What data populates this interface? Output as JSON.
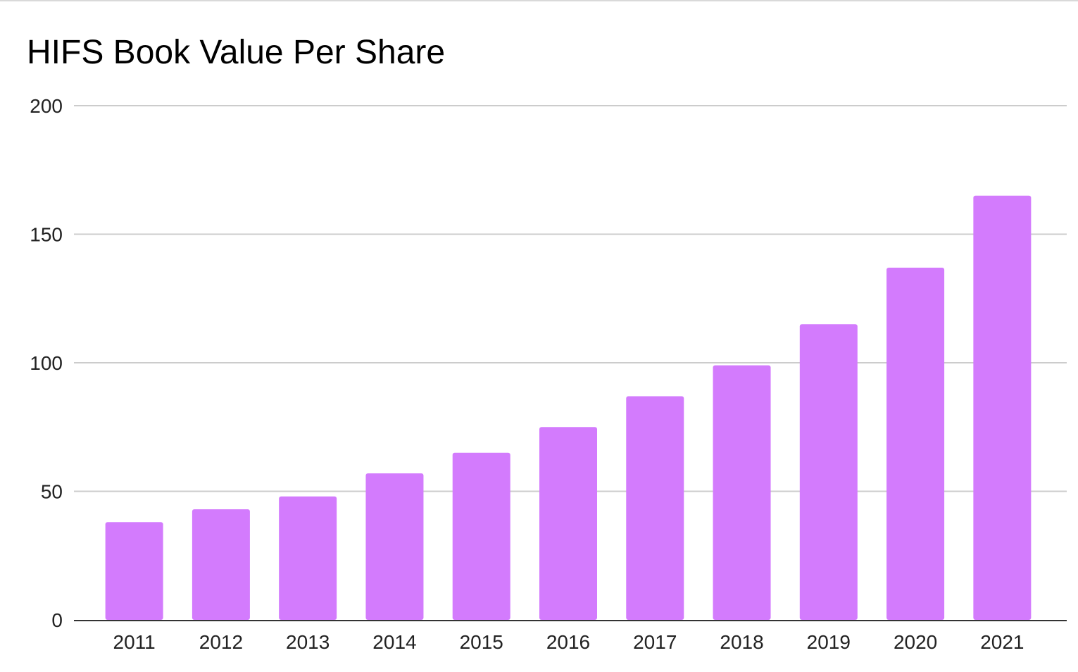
{
  "chart_data": {
    "type": "bar",
    "title": "HIFS Book Value Per Share",
    "xlabel": "",
    "ylabel": "",
    "categories": [
      "2011",
      "2012",
      "2013",
      "2014",
      "2015",
      "2016",
      "2017",
      "2018",
      "2019",
      "2020",
      "2021"
    ],
    "values": [
      38,
      43,
      48,
      57,
      65,
      75,
      87,
      99,
      115,
      137,
      165
    ],
    "ylim": [
      0,
      200
    ],
    "yticks": [
      "0",
      "50",
      "100",
      "150",
      "200"
    ],
    "grid": true,
    "legend": "none",
    "bar_color": "#d37bfd",
    "grid_color": "#cccccc",
    "axis_color": "#333333"
  }
}
